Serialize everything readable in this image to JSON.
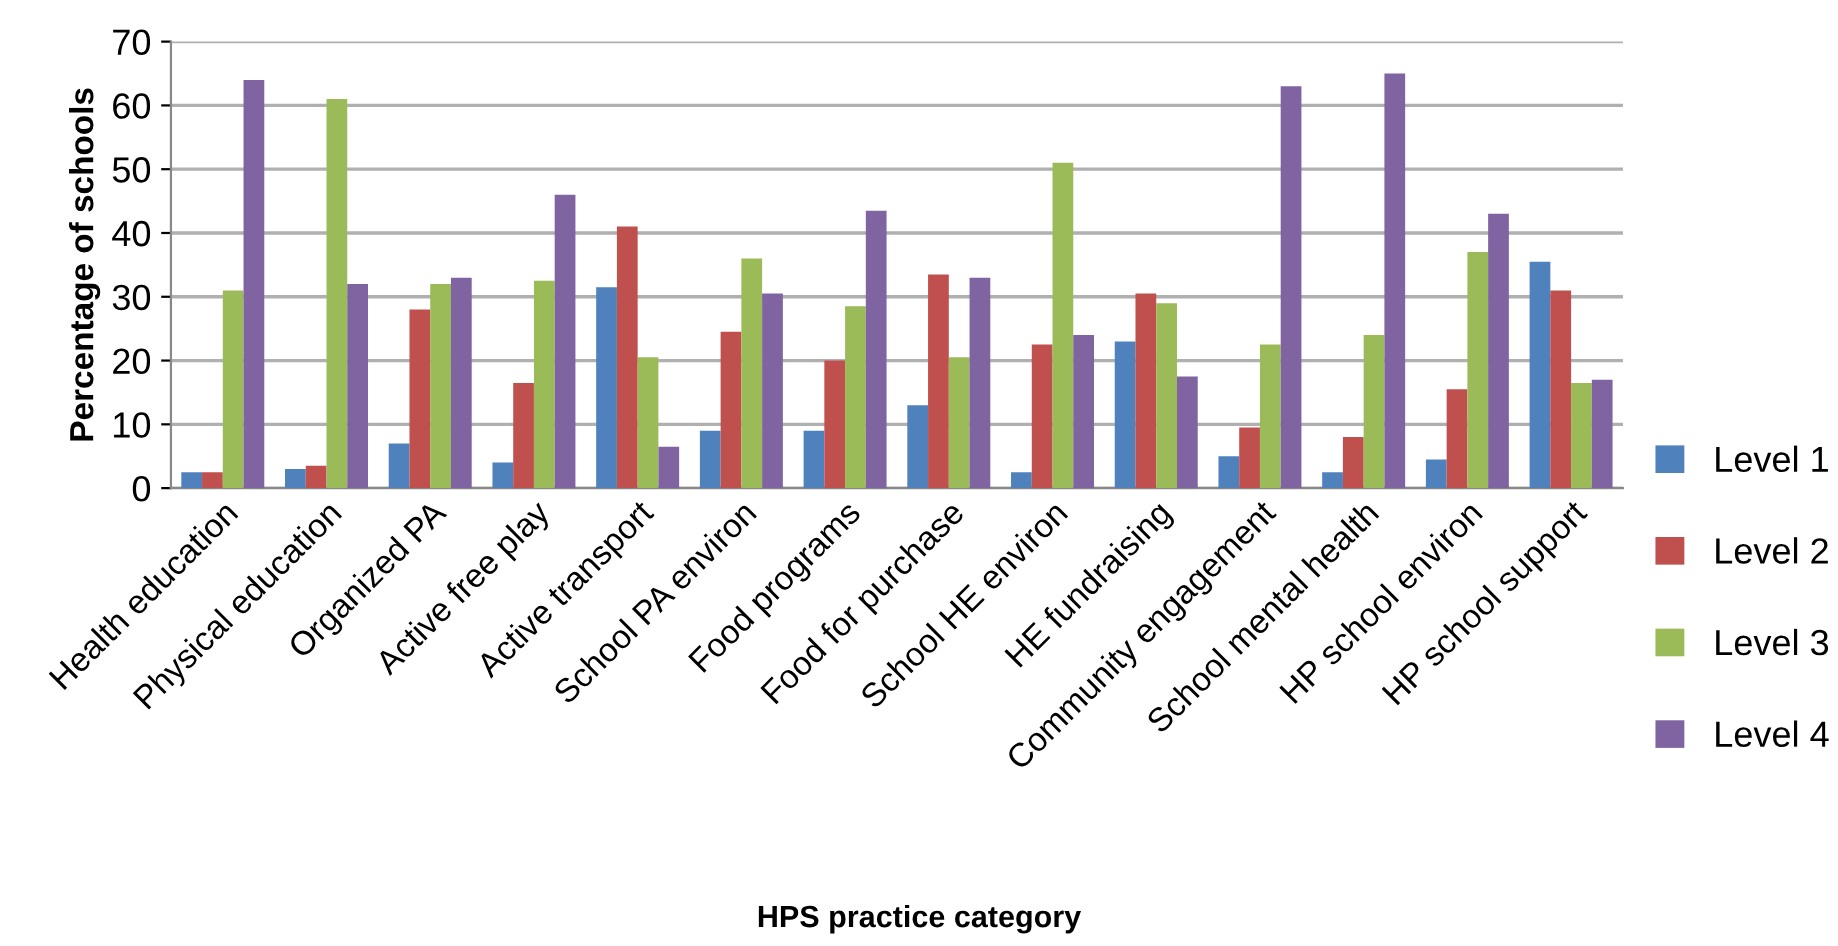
{
  "chart_data": {
    "type": "bar",
    "xlabel": "HPS practice category",
    "ylabel": "Percentage of schools",
    "categories": [
      "Health education",
      "Physical education",
      "Organized PA",
      "Active free play",
      "Active transport",
      "School PA environ",
      "Food programs",
      "Food for purchase",
      "School HE environ",
      "HE fundraising",
      "Community engagement",
      "School mental health",
      "HP school environ",
      "HP school support"
    ],
    "series": [
      {
        "name": "Level 1",
        "color": "#4f81bd",
        "values": [
          2.5,
          3,
          7,
          4,
          31.5,
          9,
          9,
          13,
          2.5,
          23,
          5,
          2.5,
          4.5,
          35.5
        ]
      },
      {
        "name": "Level 2",
        "color": "#c0504d",
        "values": [
          2.5,
          3.5,
          28,
          16.5,
          41,
          24.5,
          20,
          33.5,
          22.5,
          30.5,
          9.5,
          8,
          15.5,
          31
        ]
      },
      {
        "name": "Level 3",
        "color": "#9bbb59",
        "values": [
          31,
          61,
          32,
          32.5,
          20.5,
          36,
          28.5,
          20.5,
          51,
          29,
          22.5,
          24,
          37,
          16.5
        ]
      },
      {
        "name": "Level 4",
        "color": "#8064a2",
        "values": [
          64,
          32,
          33,
          46,
          6.5,
          30.5,
          43.5,
          33,
          24,
          17.5,
          63,
          65,
          43,
          17
        ]
      }
    ],
    "ylim": [
      0,
      70
    ],
    "yticks": [
      0,
      10,
      20,
      30,
      40,
      50,
      60,
      70
    ],
    "grid": "y",
    "legend": "right"
  }
}
